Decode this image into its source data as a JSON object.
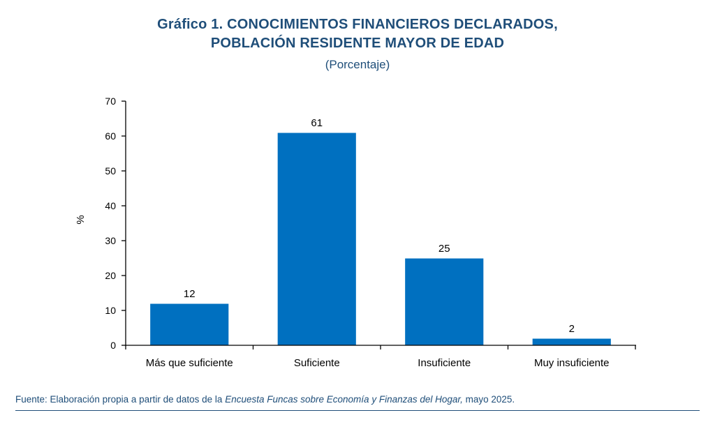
{
  "title_line1": "Gráfico 1. CONOCIMIENTOS FINANCIEROS DECLARADOS,",
  "title_line2": "POBLACIÓN RESIDENTE MAYOR DE EDAD",
  "subtitle": "(Porcentaje)",
  "source": {
    "prefix": "Fuente: Elaboración propia a partir de datos de la ",
    "italic": "Encuesta Funcas sobre Economía y Finanzas del Hogar,",
    "suffix": " mayo 2025."
  },
  "colors": {
    "bar": "#0070c0",
    "title": "#1f4e79"
  },
  "chart_data": {
    "type": "bar",
    "title": "Gráfico 1. CONOCIMIENTOS FINANCIEROS DECLARADOS, POBLACIÓN RESIDENTE MAYOR DE EDAD",
    "subtitle": "(Porcentaje)",
    "xlabel": "",
    "ylabel": "%",
    "categories": [
      "Más que suficiente",
      "Suficiente",
      "Insuficiente",
      "Muy insuficiente"
    ],
    "values": [
      12,
      61,
      25,
      2
    ],
    "data_labels": [
      "12",
      "61",
      "25",
      "2"
    ],
    "ylim": [
      0,
      70
    ],
    "yticks": [
      0,
      10,
      20,
      30,
      40,
      50,
      60,
      70
    ],
    "grid": false,
    "legend": "none"
  }
}
